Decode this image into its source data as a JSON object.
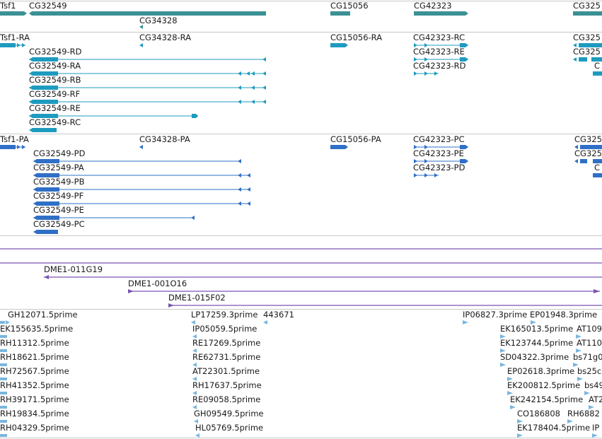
{
  "colors": {
    "gene": "#3b9193",
    "transcript": "#1e9bbf",
    "protein": "#2f6fc7",
    "clone": "#7a55b0",
    "est": "#7ab6de",
    "divider": "#c9c9c9"
  },
  "genes": [
    {
      "label": "Tsf1"
    },
    {
      "label": "CG32549"
    },
    {
      "label": "CG34328"
    },
    {
      "label": "CG15056"
    },
    {
      "label": "CG42323"
    },
    {
      "label": "CG325"
    }
  ],
  "transcripts": [
    {
      "label": "Tsf1-RA"
    },
    {
      "label": "CG34328-RA"
    },
    {
      "label": "CG15056-RA"
    },
    {
      "label": "CG42323-RC"
    },
    {
      "label": "CG42323-RE"
    },
    {
      "label": "CG42323-RD"
    },
    {
      "label": "CG32549-RD"
    },
    {
      "label": "CG32549-RA"
    },
    {
      "label": "CG32549-RB"
    },
    {
      "label": "CG32549-RF"
    },
    {
      "label": "CG32549-RE"
    },
    {
      "label": "CG32549-RC"
    },
    {
      "label": "CG325"
    },
    {
      "label": "CG325"
    },
    {
      "label": "C"
    }
  ],
  "proteins": [
    {
      "label": "Tsf1-PA"
    },
    {
      "label": "CG34328-PA"
    },
    {
      "label": "CG15056-PA"
    },
    {
      "label": "CG42323-PC"
    },
    {
      "label": "CG42323-PE"
    },
    {
      "label": "CG42323-PD"
    },
    {
      "label": "CG32549-PD"
    },
    {
      "label": "CG32549-PA"
    },
    {
      "label": "CG32549-PB"
    },
    {
      "label": "CG32549-PF"
    },
    {
      "label": "CG32549-PE"
    },
    {
      "label": "CG32549-PC"
    },
    {
      "label": "CG325"
    },
    {
      "label": "CG325"
    },
    {
      "label": "C"
    }
  ],
  "clones": [
    {
      "label": "DME1-011G19"
    },
    {
      "label": "DME1-001O16"
    },
    {
      "label": "DME1-015F02"
    }
  ],
  "ests": [
    {
      "label": "GH12071.5prime"
    },
    {
      "label": "EK155635.5prime"
    },
    {
      "label": "RH11312.5prime"
    },
    {
      "label": "RH18621.5prime"
    },
    {
      "label": "RH72567.5prime"
    },
    {
      "label": "RH41352.5prime"
    },
    {
      "label": "RH39171.5prime"
    },
    {
      "label": "RH19834.5prime"
    },
    {
      "label": "RH04329.5prime"
    },
    {
      "label": "LP17259.3prime"
    },
    {
      "label": "443671"
    },
    {
      "label": "IP05059.5prime"
    },
    {
      "label": "RE17269.5prime"
    },
    {
      "label": "RE62731.5prime"
    },
    {
      "label": "AT22301.5prime"
    },
    {
      "label": "RH17637.5prime"
    },
    {
      "label": "RE09058.5prime"
    },
    {
      "label": "GH09549.5prime"
    },
    {
      "label": "HL05769.5prime"
    },
    {
      "label": "IP06827.3prime"
    },
    {
      "label": "EP01948.3prime"
    },
    {
      "label": "EK165013.5prime"
    },
    {
      "label": "AT109"
    },
    {
      "label": "EK123744.5prime"
    },
    {
      "label": "AT110"
    },
    {
      "label": "SD04322.3prime"
    },
    {
      "label": "bs71g0"
    },
    {
      "label": "EP02618.3prime"
    },
    {
      "label": "bs25c"
    },
    {
      "label": "EK200812.5prime"
    },
    {
      "label": "bs49"
    },
    {
      "label": "EK242154.5prime"
    },
    {
      "label": "AT2"
    },
    {
      "label": "CO186808"
    },
    {
      "label": "RH6882"
    },
    {
      "label": "EK178404.5prime"
    },
    {
      "label": "IP"
    }
  ]
}
